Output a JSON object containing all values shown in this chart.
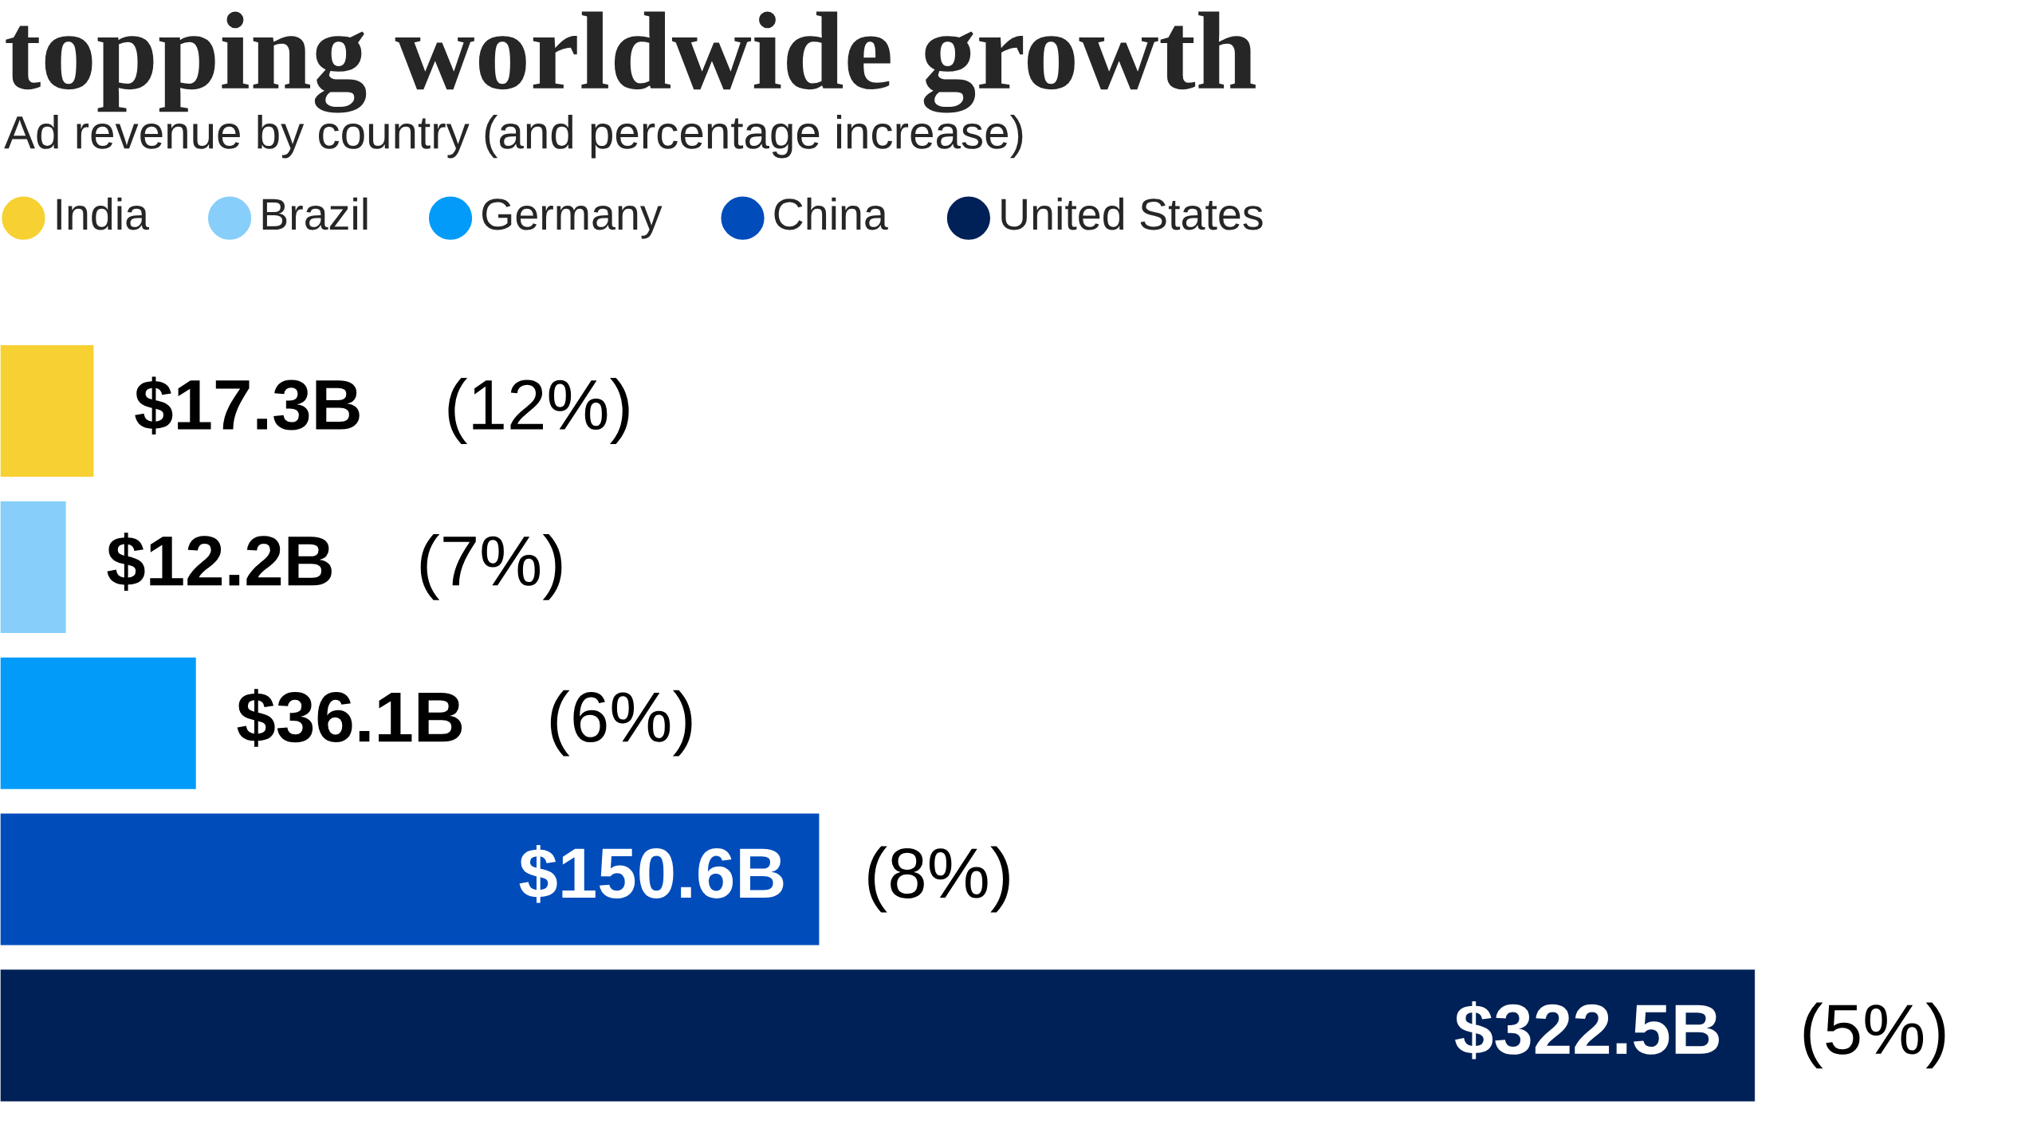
{
  "chart_data": {
    "type": "bar",
    "orientation": "horizontal",
    "title": "topping worldwide growth",
    "subtitle": "Ad revenue by country (and percentage increase)",
    "categories": [
      null,
      null,
      null,
      null,
      null
    ],
    "values": [
      17.3,
      12.2,
      36.1,
      150.6,
      322.5
    ],
    "colors": [
      "#f7d031",
      "#87cefa",
      "#039bf9",
      "#004cbb",
      "#002157"
    ],
    "value_labels": [
      "$17.3B",
      "$12.2B",
      "$36.1B",
      "$150.6B",
      "$322.5B"
    ],
    "annotations": [
      "(12%)",
      "(7%)",
      "(6%)",
      "(8%)",
      "(5%)",
      "India",
      "Brazil",
      "Germany",
      "China",
      "United States"
    ],
    "tick_labels": false
  }
}
